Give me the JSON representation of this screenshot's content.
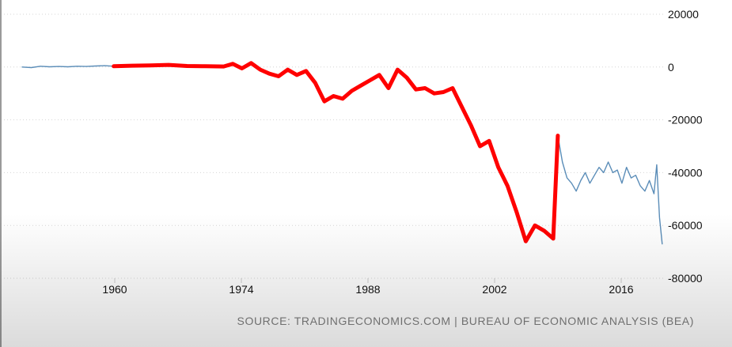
{
  "chart_data": {
    "type": "line",
    "title": "",
    "xlabel": "",
    "ylabel": "",
    "x_ticks": [
      "1960",
      "1974",
      "1988",
      "2002",
      "2016"
    ],
    "y_ticks": [
      "20000",
      "0",
      "-20000",
      "-40000",
      "-60000",
      "-80000"
    ],
    "xlim": [
      1950,
      2020
    ],
    "ylim": [
      -80000,
      20000
    ],
    "y_axis_position": "right",
    "grid": "horizontal dotted",
    "legend": "none",
    "colors": {
      "history": "#5b8db8",
      "highlight": "#ff0000"
    },
    "series": [
      {
        "role": "history",
        "x": [
          1950,
          1951,
          1952,
          1953,
          1954,
          1955,
          1956,
          1957,
          1958,
          1959,
          1960,
          1962,
          1964,
          1966,
          1968,
          1970,
          1972,
          1973,
          1974,
          1975,
          1976,
          1977,
          1978,
          1979,
          1980,
          1981,
          1982,
          1983,
          1984,
          1985,
          1986,
          1987,
          1988,
          1989,
          1990,
          1991,
          1992,
          1993,
          1994,
          1995,
          1996,
          1997,
          1998,
          1999,
          2000,
          2001,
          2002,
          2003,
          2004,
          2005,
          2006,
          2007,
          2008,
          2008.5,
          2009,
          2009.5,
          2010,
          2010.5,
          2011,
          2011.5,
          2012,
          2012.5,
          2013,
          2013.5,
          2014,
          2014.5,
          2015,
          2015.5,
          2016,
          2016.5,
          2017,
          2017.5,
          2018,
          2018.5,
          2019,
          2019.3,
          2019.6,
          2019.9
        ],
        "values": [
          0,
          -200,
          300,
          100,
          200,
          100,
          300,
          200,
          400,
          500,
          300,
          500,
          600,
          800,
          400,
          300,
          200,
          1200,
          -500,
          1500,
          -1000,
          -2500,
          -3500,
          -1000,
          -3000,
          -1500,
          -6000,
          -13000,
          -11000,
          -12000,
          -9000,
          -7000,
          -5000,
          -3000,
          -8000,
          -1000,
          -4000,
          -8500,
          -8000,
          -10000,
          -9500,
          -8000,
          -15000,
          -22000,
          -30000,
          -28000,
          -38000,
          -45000,
          -55000,
          -66000,
          -60000,
          -62000,
          -65000,
          -26000,
          -36000,
          -42000,
          -44000,
          -47000,
          -43000,
          -40000,
          -44000,
          -41000,
          -38000,
          -40000,
          -36000,
          -40000,
          -39000,
          -44000,
          -38000,
          -42000,
          -41000,
          -45000,
          -47000,
          -43000,
          -48000,
          -37000,
          -57000,
          -67000
        ]
      },
      {
        "role": "highlight",
        "x": [
          1960,
          1962,
          1964,
          1966,
          1968,
          1970,
          1972,
          1973,
          1974,
          1975,
          1976,
          1977,
          1978,
          1979,
          1980,
          1981,
          1982,
          1983,
          1984,
          1985,
          1986,
          1987,
          1988,
          1989,
          1990,
          1991,
          1992,
          1993,
          1994,
          1995,
          1996,
          1997,
          1998,
          1999,
          2000,
          2001,
          2002,
          2003,
          2004,
          2005,
          2006,
          2007,
          2008,
          2008.5
        ],
        "values": [
          300,
          500,
          600,
          800,
          400,
          300,
          200,
          1200,
          -500,
          1500,
          -1000,
          -2500,
          -3500,
          -1000,
          -3000,
          -1500,
          -6000,
          -13000,
          -11000,
          -12000,
          -9000,
          -7000,
          -5000,
          -3000,
          -8000,
          -1000,
          -4000,
          -8500,
          -8000,
          -10000,
          -9500,
          -8000,
          -15000,
          -22000,
          -30000,
          -28000,
          -38000,
          -45000,
          -55000,
          -66000,
          -60000,
          -62000,
          -65000,
          -26000
        ]
      }
    ]
  },
  "source": "SOURCE: TRADINGECONOMICS.COM | BUREAU OF ECONOMIC ANALYSIS (BEA)"
}
